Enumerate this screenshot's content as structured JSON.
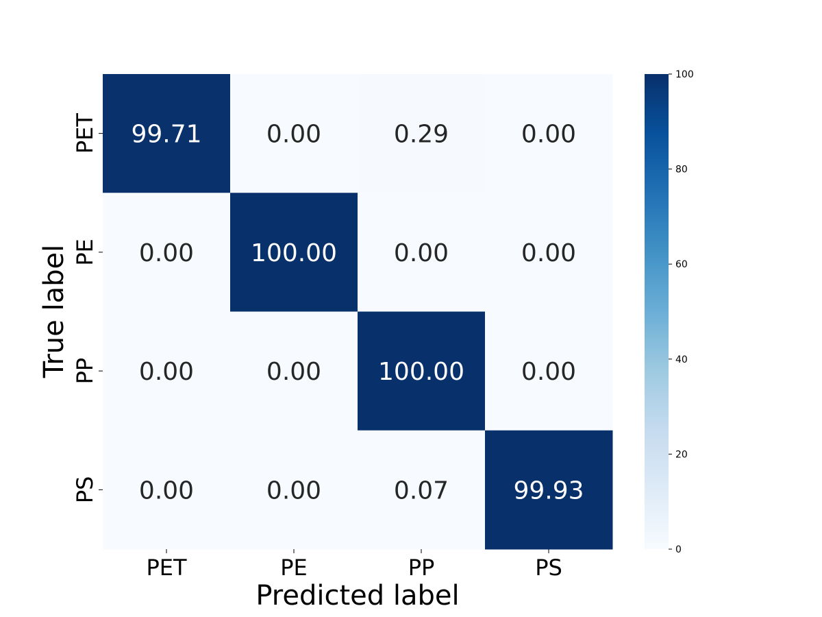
{
  "chart_data": {
    "type": "heatmap",
    "title": "",
    "xlabel": "Predicted label",
    "ylabel": "True label",
    "x_categories": [
      "PET",
      "PE",
      "PP",
      "PS"
    ],
    "y_categories": [
      "PET",
      "PE",
      "PP",
      "PS"
    ],
    "values": [
      [
        99.71,
        0.0,
        0.29,
        0.0
      ],
      [
        0.0,
        100.0,
        0.0,
        0.0
      ],
      [
        0.0,
        0.0,
        100.0,
        0.0
      ],
      [
        0.0,
        0.0,
        0.07,
        99.93
      ]
    ],
    "cell_labels": [
      [
        "99.71",
        "0.00",
        "0.29",
        "0.00"
      ],
      [
        "0.00",
        "100.00",
        "0.00",
        "0.00"
      ],
      [
        "0.00",
        "0.00",
        "100.00",
        "0.00"
      ],
      [
        "0.00",
        "0.00",
        "0.07",
        "99.93"
      ]
    ],
    "colormap": "Blues",
    "color_low": "#f7fbff",
    "color_high": "#08306b",
    "vmin": 0,
    "vmax": 100,
    "colorbar_ticks": [
      "0",
      "20",
      "40",
      "60",
      "80",
      "100"
    ],
    "colorbar_values": [
      0,
      20,
      40,
      60,
      80,
      100
    ],
    "annotation_color_dark": "#262626",
    "annotation_color_light": "#ffffff",
    "legend": "colorbar-right",
    "grid": false
  }
}
